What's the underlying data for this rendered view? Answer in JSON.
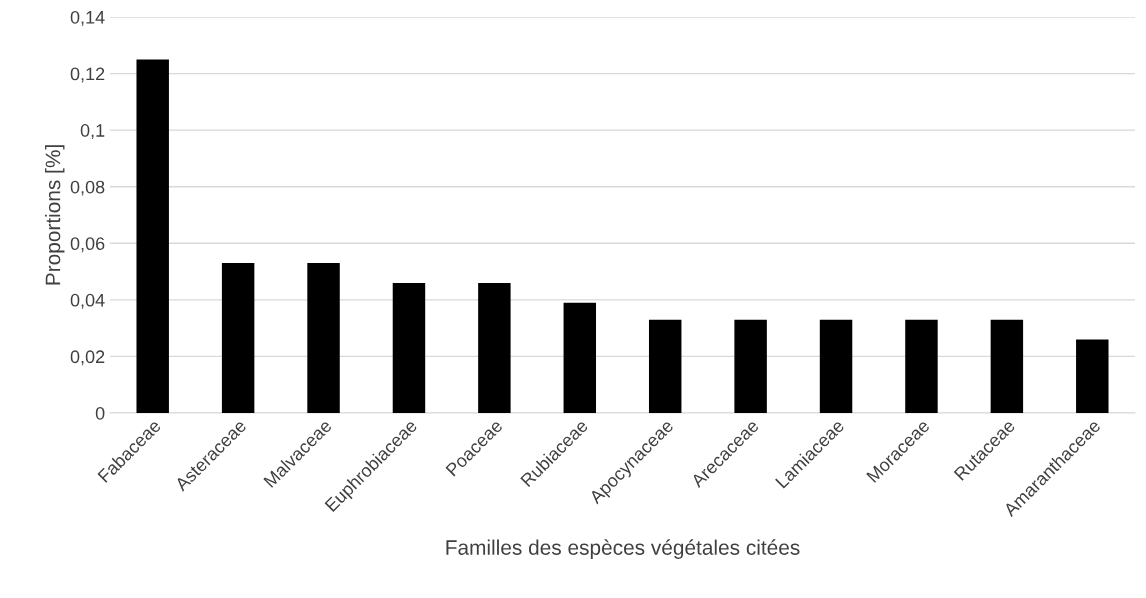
{
  "chart_data": {
    "type": "bar",
    "xlabel": "Familles des espèces végétales citées",
    "ylabel": "Proportions [%]",
    "categories": [
      "Fabaceae",
      "Asteraceae",
      "Malvaceae",
      "Euphrobiaceae",
      "Poaceae",
      "Rubiaceae",
      "Apocynaceae",
      "Arecaceae",
      "Lamiaceae",
      "Moraceae",
      "Rutaceae",
      "Amaranthaceae"
    ],
    "values": [
      0.125,
      0.053,
      0.053,
      0.046,
      0.046,
      0.039,
      0.033,
      0.033,
      0.033,
      0.033,
      0.033,
      0.026
    ],
    "color": "#000000",
    "ylim": [
      0,
      0.14
    ],
    "yticks": [
      {
        "value": 0,
        "label": "0"
      },
      {
        "value": 0.02,
        "label": "0,02"
      },
      {
        "value": 0.04,
        "label": "0,04"
      },
      {
        "value": 0.06,
        "label": "0,06"
      },
      {
        "value": 0.08,
        "label": "0,08"
      },
      {
        "value": 0.1,
        "label": "0,1"
      },
      {
        "value": 0.12,
        "label": "0,12"
      },
      {
        "value": 0.14,
        "label": "0,14"
      }
    ],
    "grid": "y"
  }
}
